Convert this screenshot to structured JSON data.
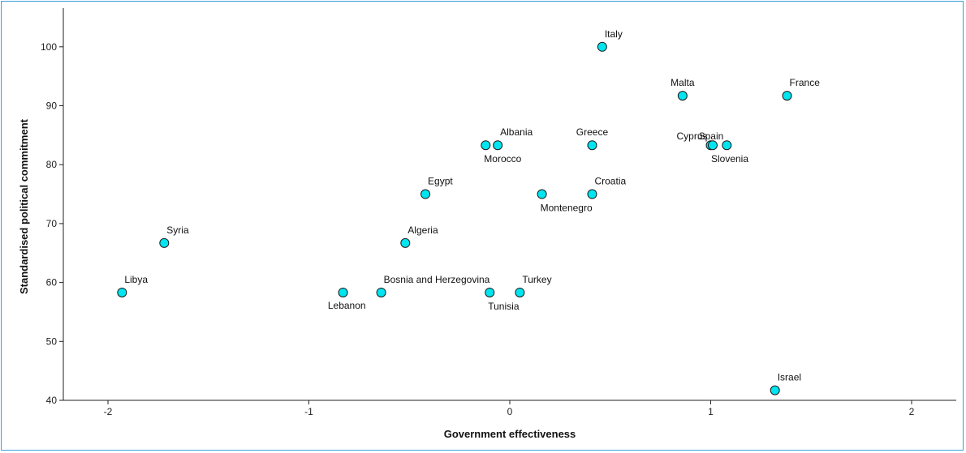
{
  "chart_data": {
    "type": "scatter",
    "title": "",
    "xlabel": "Government effectiveness",
    "ylabel": "Standardised political commitment",
    "xlim": [
      -2.25,
      2.22
    ],
    "ylim": [
      40,
      106
    ],
    "xticks": [
      -2,
      -1,
      0,
      1,
      2
    ],
    "yticks": [
      40,
      50,
      60,
      70,
      80,
      90,
      100
    ],
    "grid": false,
    "marker_color": "#00e5f0",
    "marker_edge": "#1a1a1a",
    "points": [
      {
        "label": "Italy",
        "x": 0.46,
        "y": 100.0,
        "label_pos": "above-right"
      },
      {
        "label": "Malta",
        "x": 0.86,
        "y": 91.7,
        "label_pos": "above"
      },
      {
        "label": "France",
        "x": 1.38,
        "y": 91.7,
        "label_pos": "above-right"
      },
      {
        "label": "Albania",
        "x": -0.06,
        "y": 83.3,
        "label_pos": "above-right"
      },
      {
        "label": "Morocco",
        "x": -0.12,
        "y": 83.3,
        "label_pos": "below-right"
      },
      {
        "label": "Greece",
        "x": 0.41,
        "y": 83.3,
        "label_pos": "above"
      },
      {
        "label": "Cyprus",
        "x": 1.0,
        "y": 83.3,
        "label_pos": "above-left"
      },
      {
        "label": "Spain",
        "x": 1.08,
        "y": 83.3,
        "label_pos": "above-left"
      },
      {
        "label": "Slovenia",
        "x": 1.01,
        "y": 83.3,
        "label_pos": "below-right"
      },
      {
        "label": "Egypt",
        "x": -0.42,
        "y": 75.0,
        "label_pos": "above-right"
      },
      {
        "label": "Montenegro",
        "x": 0.16,
        "y": 75.0,
        "label_pos": "below-right"
      },
      {
        "label": "Croatia",
        "x": 0.41,
        "y": 75.0,
        "label_pos": "above-right"
      },
      {
        "label": "Syria",
        "x": -1.72,
        "y": 66.7,
        "label_pos": "above-right"
      },
      {
        "label": "Algeria",
        "x": -0.52,
        "y": 66.7,
        "label_pos": "above-right"
      },
      {
        "label": "Libya",
        "x": -1.93,
        "y": 58.3,
        "label_pos": "above-right"
      },
      {
        "label": "Lebanon",
        "x": -0.83,
        "y": 58.3,
        "label_pos": "below-left"
      },
      {
        "label": "Bosnia and Herzegovina",
        "x": -0.64,
        "y": 58.3,
        "label_pos": "above-right"
      },
      {
        "label": "Tunisia",
        "x": -0.1,
        "y": 58.3,
        "label_pos": "below-right"
      },
      {
        "label": "Turkey",
        "x": 0.05,
        "y": 58.3,
        "label_pos": "above-right"
      },
      {
        "label": "Israel",
        "x": 1.32,
        "y": 41.7,
        "label_pos": "above-right"
      }
    ]
  }
}
